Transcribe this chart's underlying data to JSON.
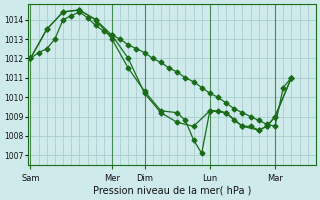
{
  "title": "Pression niveau de la mer( hPa )",
  "bg_color": "#ceeaea",
  "grid_color": "#aacece",
  "line_color": "#1a6b1a",
  "markersize": 2.5,
  "ylim": [
    1006.5,
    1014.8
  ],
  "yticks": [
    1007,
    1008,
    1009,
    1010,
    1011,
    1012,
    1013,
    1014
  ],
  "day_positions": [
    0,
    60,
    84,
    132,
    180
  ],
  "day_labels": [
    "Sam",
    "Mer",
    "Dim",
    "Lun",
    "Mar"
  ],
  "xlim": [
    -2,
    210
  ],
  "line1_x": [
    0,
    6,
    12,
    18,
    24,
    30,
    36,
    42,
    48,
    54,
    60,
    66,
    72,
    78,
    84,
    90,
    96,
    102,
    108,
    114,
    120,
    126,
    132,
    138,
    144,
    150,
    156,
    162,
    168,
    174,
    180,
    186,
    192
  ],
  "line1_y": [
    1012.0,
    1012.3,
    1012.5,
    1013.0,
    1014.0,
    1014.2,
    1014.4,
    1014.1,
    1013.7,
    1013.4,
    1013.2,
    1013.0,
    1012.7,
    1012.5,
    1012.3,
    1012.0,
    1011.8,
    1011.5,
    1011.3,
    1011.0,
    1010.8,
    1010.5,
    1010.2,
    1010.0,
    1009.7,
    1009.4,
    1009.2,
    1009.0,
    1008.8,
    1008.6,
    1008.5,
    1010.5,
    1011.0
  ],
  "line2_x": [
    0,
    12,
    24,
    36,
    48,
    60,
    72,
    84,
    96,
    108,
    120,
    132,
    144,
    156,
    168,
    174,
    180,
    192
  ],
  "line2_y": [
    1012.0,
    1013.5,
    1014.4,
    1014.5,
    1014.0,
    1013.2,
    1012.0,
    1010.2,
    1009.2,
    1008.7,
    1008.5,
    1009.3,
    1009.2,
    1008.5,
    1008.3,
    1008.5,
    1009.0,
    1011.0
  ],
  "line3_x": [
    0,
    12,
    24,
    36,
    48,
    60,
    72,
    84,
    96,
    108,
    114,
    120,
    126,
    132,
    138,
    144,
    150,
    156,
    162,
    168,
    174,
    180,
    192
  ],
  "line3_y": [
    1012.0,
    1013.5,
    1014.4,
    1014.5,
    1014.0,
    1013.0,
    1011.5,
    1010.3,
    1009.3,
    1009.2,
    1008.8,
    1007.8,
    1007.1,
    1009.3,
    1009.3,
    1009.2,
    1008.8,
    1008.5,
    1008.5,
    1008.3,
    1008.5,
    1009.0,
    1011.0
  ]
}
